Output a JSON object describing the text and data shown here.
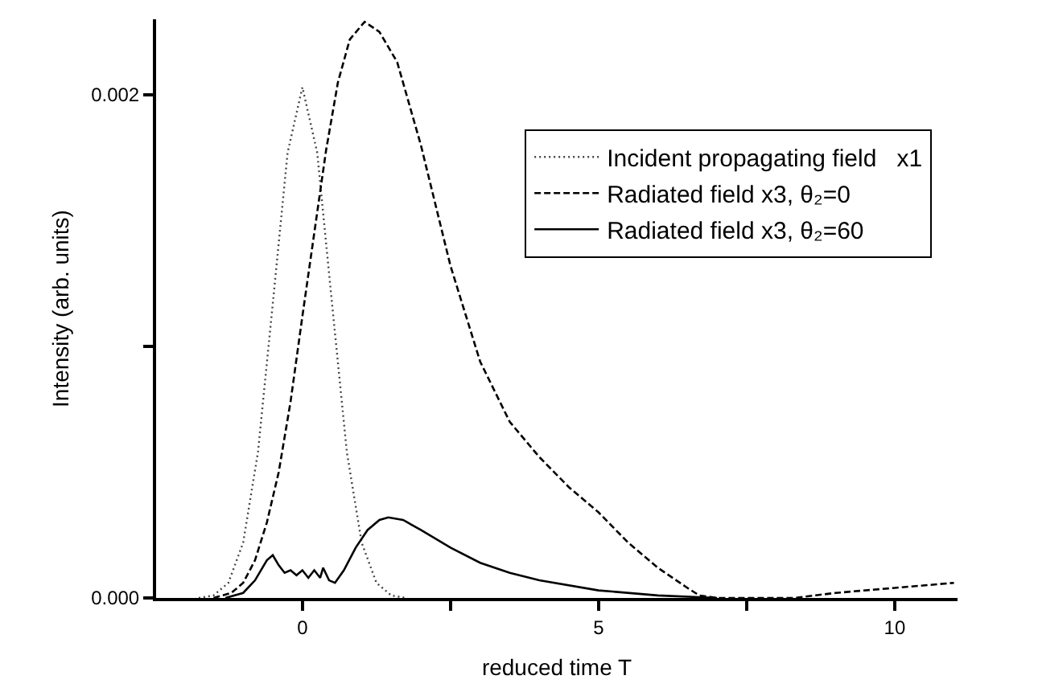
{
  "chart_data": {
    "type": "line",
    "xlabel": "reduced time T",
    "ylabel": "Intensity (arb. units)",
    "xlim": [
      -2.47,
      11.06
    ],
    "xticks": [
      0,
      {
        "value": 2.5,
        "label": null
      },
      5,
      {
        "value": 7.5,
        "label": null
      },
      10
    ],
    "ylim": [
      0,
      0.0023
    ],
    "yticks": [
      {
        "value": 0,
        "label": "0.000"
      },
      {
        "value": 0.001,
        "label": null
      },
      {
        "value": 0.002,
        "label": "0.002"
      }
    ],
    "grid": false,
    "legend": "top right",
    "marker": "none",
    "series": [
      {
        "name": "Incident propagating field   x1",
        "color": "#444444",
        "line_style": "dotted",
        "x": [
          -1.75,
          -1.5,
          -1.25,
          -1,
          -0.75,
          -0.5,
          -0.25,
          0,
          0.25,
          0.5,
          0.75,
          1,
          1.25,
          1.5,
          1.75
        ],
        "values": [
          0,
          1e-05,
          6e-05,
          0.00022,
          0.00058,
          0.00117,
          0.00177,
          0.00203,
          0.00177,
          0.00117,
          0.00058,
          0.00022,
          6e-05,
          1e-05,
          0
        ]
      },
      {
        "name": "Radiated field x3, θ₂=0",
        "color": "#000000",
        "line_style": "dashed",
        "x": [
          -1.5,
          -1.2,
          -1,
          -0.8,
          -0.6,
          -0.4,
          -0.2,
          0,
          0.2,
          0.4,
          0.6,
          0.8,
          1.05,
          1.3,
          1.6,
          2,
          2.5,
          3,
          3.5,
          4,
          4.5,
          5,
          5.5,
          6,
          6.5,
          6.7,
          7,
          8.3,
          9,
          10,
          11
        ],
        "values": [
          0,
          2e-05,
          6e-05,
          0.00015,
          0.0003,
          0.0005,
          0.00078,
          0.00112,
          0.00145,
          0.00178,
          0.00205,
          0.00222,
          0.00229,
          0.00225,
          0.00213,
          0.0018,
          0.00132,
          0.00094,
          0.0007,
          0.00056,
          0.00044,
          0.00034,
          0.00022,
          0.00012,
          4e-05,
          1e-05,
          0,
          0,
          2e-05,
          4e-05,
          6e-05
        ]
      },
      {
        "name": "Radiated field x3, θ₂=60",
        "color": "#000000",
        "line_style": "solid",
        "x": [
          -1.3,
          -1,
          -0.8,
          -0.6,
          -0.5,
          -0.4,
          -0.3,
          -0.2,
          -0.1,
          0,
          0.1,
          0.2,
          0.3,
          0.35,
          0.45,
          0.55,
          0.7,
          0.9,
          1.1,
          1.3,
          1.45,
          1.7,
          2,
          2.5,
          3,
          3.5,
          4,
          5,
          6,
          7
        ],
        "values": [
          0,
          2e-05,
          7e-05,
          0.00015,
          0.00017,
          0.00013,
          0.0001,
          0.00011,
          9e-05,
          0.00011,
          8e-05,
          0.00011,
          8e-05,
          0.00012,
          7e-05,
          6e-05,
          0.00011,
          0.0002,
          0.00027,
          0.00031,
          0.00032,
          0.00031,
          0.00027,
          0.0002,
          0.00014,
          0.0001,
          7e-05,
          3e-05,
          1e-05,
          0
        ]
      }
    ]
  }
}
